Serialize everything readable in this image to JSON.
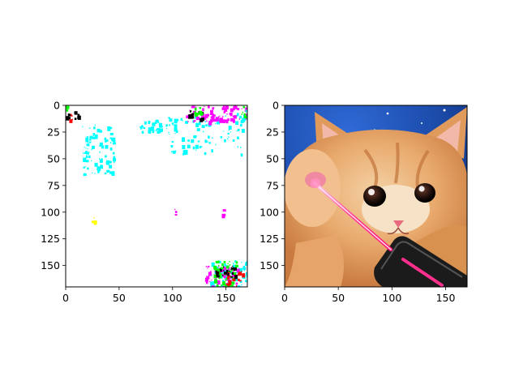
{
  "chart_data": [
    {
      "type": "heatmap",
      "panel": "left",
      "description": "Mostly white image with sparse saturated colour speckles (cyan, magenta, green, red, black, yellow)",
      "xlim": [
        0,
        170
      ],
      "ylim": [
        170,
        0
      ],
      "xticks": [
        0,
        50,
        100,
        150
      ],
      "yticks": [
        0,
        25,
        50,
        75,
        100,
        125,
        150
      ],
      "xtick_labels": [
        "0",
        "50",
        "100",
        "150"
      ],
      "ytick_labels": [
        "0",
        "25",
        "50",
        "75",
        "100",
        "125",
        "150"
      ],
      "speckle_regions": [
        {
          "color": "#00ffff",
          "x": [
            15,
            45
          ],
          "y": [
            15,
            65
          ]
        },
        {
          "color": "#00ffff",
          "x": [
            68,
            100
          ],
          "y": [
            13,
            25
          ]
        },
        {
          "color": "#00ffff",
          "x": [
            95,
            165
          ],
          "y": [
            8,
            45
          ]
        },
        {
          "color": "#ff00ff",
          "x": [
            112,
            170
          ],
          "y": [
            0,
            15
          ]
        },
        {
          "color": "#000000",
          "x": [
            114,
            128
          ],
          "y": [
            3,
            12
          ]
        },
        {
          "color": "#00ff00",
          "x": [
            120,
            130
          ],
          "y": [
            0,
            8
          ]
        },
        {
          "color": "#ff0000",
          "x": [
            0,
            6
          ],
          "y": [
            5,
            13
          ]
        },
        {
          "color": "#000000",
          "x": [
            0,
            14
          ],
          "y": [
            5,
            13
          ]
        },
        {
          "color": "#00ff00",
          "x": [
            0,
            4
          ],
          "y": [
            0,
            4
          ]
        },
        {
          "color": "#00ffff",
          "x": [
            160,
            170
          ],
          "y": [
            3,
            14
          ]
        },
        {
          "color": "#00ff00",
          "x": [
            160,
            170
          ],
          "y": [
            0,
            10
          ]
        },
        {
          "color": "#ff00ff",
          "x": [
            97,
            103
          ],
          "y": [
            96,
            103
          ]
        },
        {
          "color": "#ff00ff",
          "x": [
            143,
            148
          ],
          "y": [
            97,
            102
          ]
        },
        {
          "color": "#ffff00",
          "x": [
            23,
            27
          ],
          "y": [
            104,
            109
          ]
        },
        {
          "color": "#00ffff",
          "x": [
            135,
            170
          ],
          "y": [
            145,
            170
          ]
        },
        {
          "color": "#ff00ff",
          "x": [
            130,
            160
          ],
          "y": [
            150,
            170
          ]
        },
        {
          "color": "#00ff00",
          "x": [
            138,
            160
          ],
          "y": [
            145,
            170
          ]
        },
        {
          "color": "#ff0000",
          "x": [
            150,
            165
          ],
          "y": [
            155,
            170
          ]
        },
        {
          "color": "#000000",
          "x": [
            140,
            160
          ],
          "y": [
            150,
            160
          ]
        }
      ]
    },
    {
      "type": "heatmap",
      "panel": "right",
      "description": "Photo of an orange kitten with a pink laser beam from a laser pointer on a starry blue background",
      "xlim": [
        0,
        170
      ],
      "ylim": [
        170,
        0
      ],
      "xticks": [
        0,
        50,
        100,
        150
      ],
      "yticks": [
        0,
        25,
        50,
        75,
        100,
        125,
        150
      ],
      "xtick_labels": [
        "0",
        "50",
        "100",
        "150"
      ],
      "ytick_labels": [
        "0",
        "25",
        "50",
        "75",
        "100",
        "125",
        "150"
      ],
      "colors": {
        "sky": "#1e4fb0",
        "fur": "#e7a86a",
        "fur_light": "#f6e2c6",
        "laser": "#ff2f8d",
        "device": "#1b1b1b"
      }
    }
  ]
}
